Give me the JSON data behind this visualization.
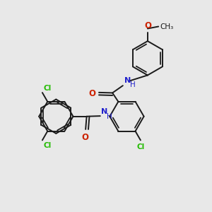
{
  "bg_color": "#e8e8e8",
  "bond_color": "#1a1a1a",
  "bond_width": 1.4,
  "cl_color": "#22bb00",
  "n_color": "#2222cc",
  "o_color": "#cc2200",
  "c_color": "#1a1a1a",
  "figsize": [
    3.0,
    3.0
  ],
  "dpi": 100,
  "xlim": [
    0,
    10
  ],
  "ylim": [
    0,
    10
  ]
}
